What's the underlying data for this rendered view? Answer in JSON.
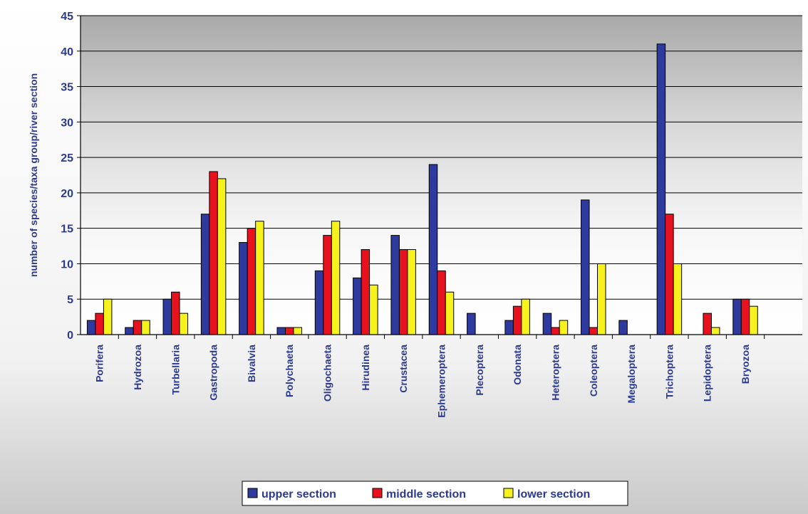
{
  "chart_data": {
    "type": "bar",
    "title": "",
    "xlabel": "",
    "ylabel": "number of species/taxa group/river section",
    "ylim": [
      0,
      45
    ],
    "yticks": [
      0,
      5,
      10,
      15,
      20,
      25,
      30,
      35,
      40,
      45
    ],
    "grid": true,
    "legend_position": "bottom",
    "categories": [
      "Porifera",
      "Hydrozoa",
      "Turbellaria",
      "Gastropoda",
      "Bivalvia",
      "Polychaeta",
      "Oligochaeta",
      "Hirudinea",
      "Crustacea",
      "Ephemeroptera",
      "Plecoptera",
      "Odonata",
      "Heteroptera",
      "Coleoptera",
      "Megaloptera",
      "Trichoptera",
      "Lepidoptera",
      "Bryozoa"
    ],
    "series": [
      {
        "name": "upper section",
        "color": "#2e3a9e",
        "values": [
          2,
          1,
          5,
          17,
          13,
          1,
          9,
          8,
          14,
          24,
          3,
          2,
          3,
          19,
          2,
          41,
          0,
          5
        ]
      },
      {
        "name": "middle section",
        "color": "#e8121e",
        "values": [
          3,
          2,
          6,
          23,
          15,
          1,
          14,
          12,
          12,
          9,
          0,
          4,
          1,
          1,
          0,
          17,
          3,
          5
        ]
      },
      {
        "name": "lower section",
        "color": "#f5f21e",
        "values": [
          5,
          2,
          3,
          22,
          16,
          1,
          16,
          7,
          12,
          6,
          0,
          5,
          2,
          10,
          0,
          10,
          1,
          4
        ]
      }
    ]
  }
}
